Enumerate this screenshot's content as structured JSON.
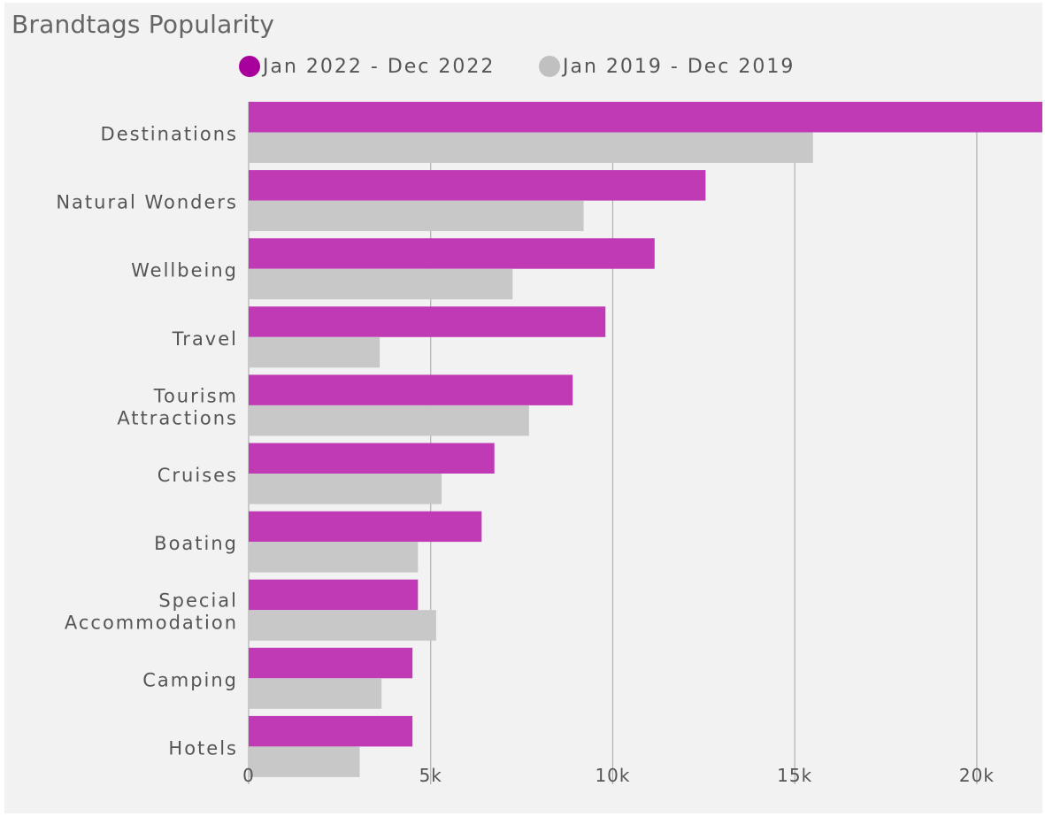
{
  "chart_data": {
    "type": "bar",
    "orientation": "horizontal",
    "title": "Brandtags Popularity",
    "xlabel": "",
    "ylabel": "",
    "categories": [
      [
        "Destinations"
      ],
      [
        "Natural Wonders"
      ],
      [
        "Wellbeing"
      ],
      [
        "Travel"
      ],
      [
        "Tourism",
        "Attractions"
      ],
      [
        "Cruises"
      ],
      [
        "Boating"
      ],
      [
        "Special",
        "Accommodation"
      ],
      [
        "Camping"
      ],
      [
        "Hotels"
      ]
    ],
    "series": [
      {
        "name": "Jan 2022 - Dec 2022",
        "color": "#c03ab6",
        "values": [
          21800,
          12550,
          11150,
          9800,
          8900,
          6750,
          6400,
          4650,
          4500,
          4500
        ]
      },
      {
        "name": "Jan 2019 - Dec 2019",
        "color": "#c8c8c8",
        "values": [
          15500,
          9200,
          7250,
          3600,
          7700,
          5300,
          4650,
          5150,
          3650,
          3050
        ]
      }
    ],
    "xlim": [
      0,
      21800
    ],
    "ticks": [
      0,
      5000,
      10000,
      15000,
      20000
    ],
    "tick_labels": [
      "0",
      "5k",
      "10k",
      "15k",
      "20k"
    ],
    "grid": true,
    "legend_position": "top"
  },
  "legend_colors": {
    "series_0": "#a8009a",
    "series_1": "#c0c0c0"
  },
  "grid_color": "#b0b0b0"
}
